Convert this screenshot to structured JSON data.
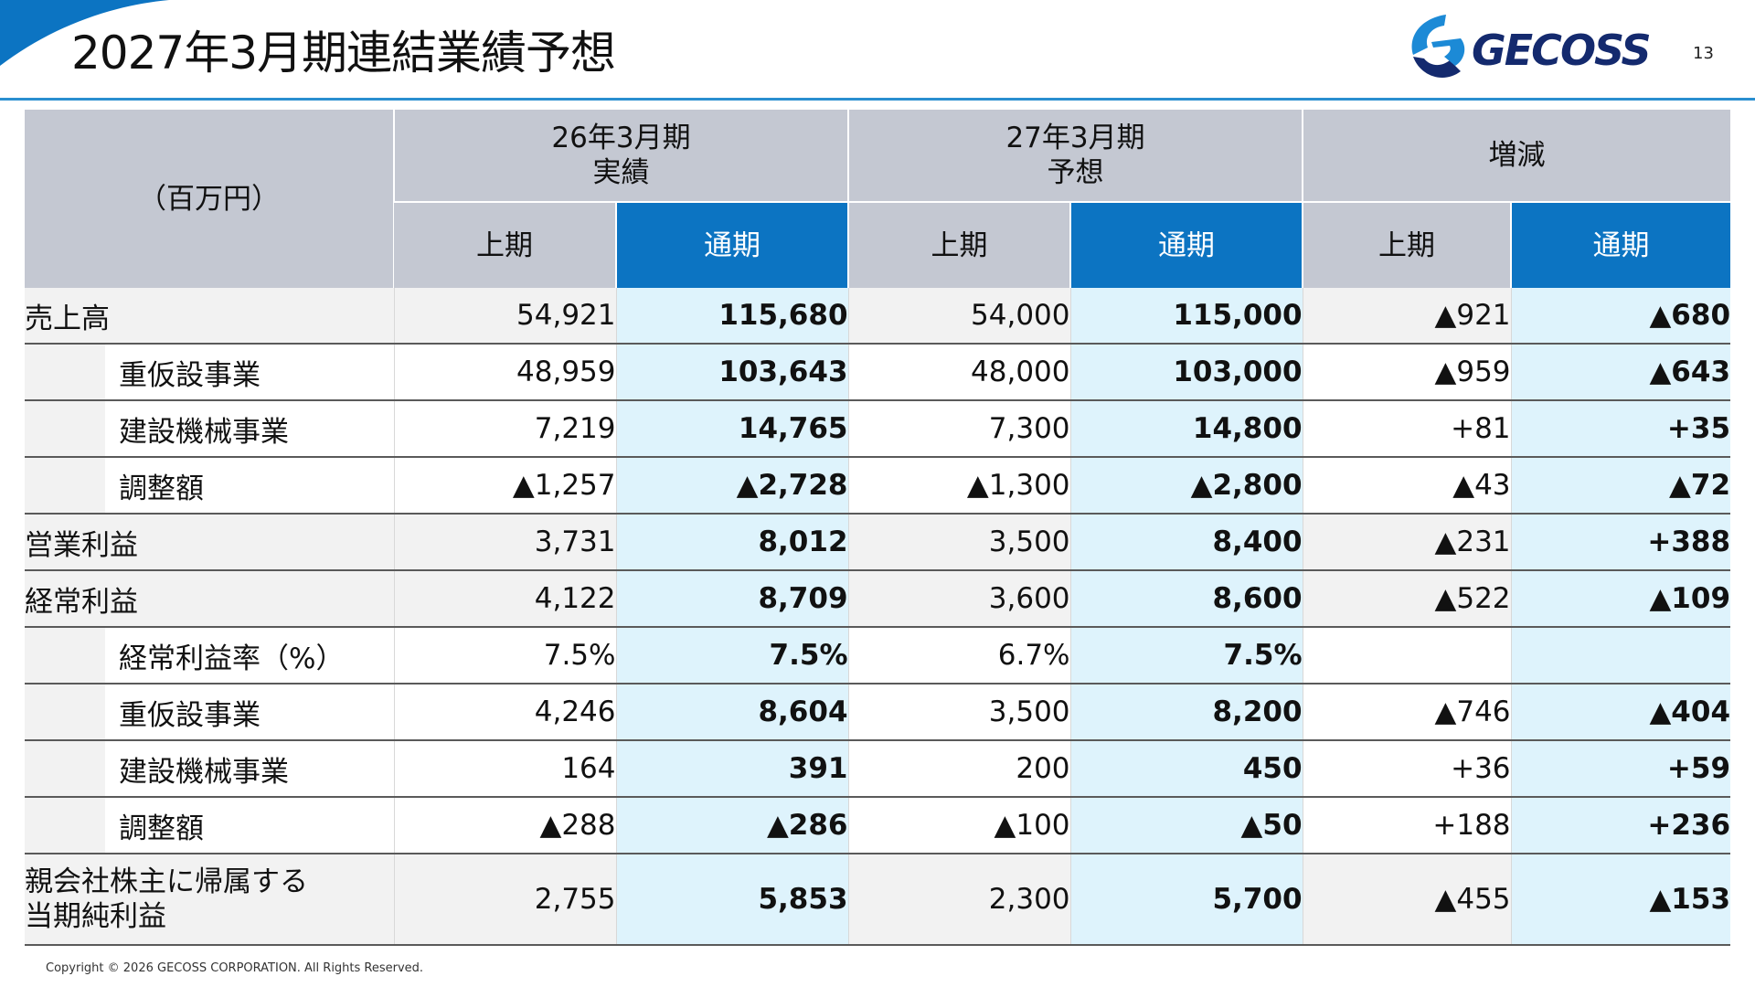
{
  "header": {
    "title": "2027年3月期連結業績予想",
    "logo_text": "GECOSS",
    "page_number": "13"
  },
  "colors": {
    "accent_blue": "#0c74c2",
    "header_gray": "#c4c8d2",
    "full_year_highlight": "#def3fc",
    "row_gray": "#f2f2f2",
    "logo_navy": "#142a6e"
  },
  "table": {
    "unit_label": "（百万円）",
    "period_groups": [
      {
        "line1": "26年3月期",
        "line2": "実績"
      },
      {
        "line1": "27年3月期",
        "line2": "予想"
      },
      {
        "line1": "増減",
        "line2": ""
      }
    ],
    "sub_headers": [
      "上期",
      "通期",
      "上期",
      "通期",
      "上期",
      "通期"
    ],
    "rows": [
      {
        "label": "売上高",
        "values": [
          "54,921",
          "115,680",
          "54,000",
          "115,000",
          "▲921",
          "▲680"
        ]
      },
      {
        "label": "重仮設事業",
        "values": [
          "48,959",
          "103,643",
          "48,000",
          "103,000",
          "▲959",
          "▲643"
        ]
      },
      {
        "label": "建設機械事業",
        "values": [
          "7,219",
          "14,765",
          "7,300",
          "14,800",
          "+81",
          "+35"
        ]
      },
      {
        "label": "調整額",
        "values": [
          "▲1,257",
          "▲2,728",
          "▲1,300",
          "▲2,800",
          "▲43",
          "▲72"
        ]
      },
      {
        "label": "営業利益",
        "values": [
          "3,731",
          "8,012",
          "3,500",
          "8,400",
          "▲231",
          "+388"
        ]
      },
      {
        "label": "経常利益",
        "values": [
          "4,122",
          "8,709",
          "3,600",
          "8,600",
          "▲522",
          "▲109"
        ]
      },
      {
        "label": "経常利益率（%）",
        "values": [
          "7.5%",
          "7.5%",
          "6.7%",
          "7.5%",
          "",
          ""
        ]
      },
      {
        "label": "重仮設事業",
        "values": [
          "4,246",
          "8,604",
          "3,500",
          "8,200",
          "▲746",
          "▲404"
        ]
      },
      {
        "label": "建設機械事業",
        "values": [
          "164",
          "391",
          "200",
          "450",
          "+36",
          "+59"
        ]
      },
      {
        "label": "調整額",
        "values": [
          "▲288",
          "▲286",
          "▲100",
          "▲50",
          "+188",
          "+236"
        ]
      },
      {
        "label_line1": "親会社株主に帰属する",
        "label_line2": "当期純利益",
        "values": [
          "2,755",
          "5,853",
          "2,300",
          "5,700",
          "▲455",
          "▲153"
        ]
      }
    ]
  },
  "footer": {
    "copyright": "Copyright © 2026 GECOSS CORPORATION. All Rights Reserved."
  }
}
